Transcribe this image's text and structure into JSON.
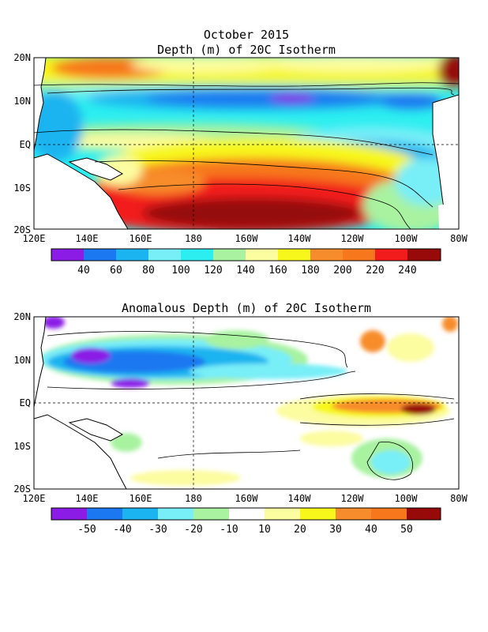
{
  "top_panel": {
    "title_line1": "October 2015",
    "title_line2": "Depth (m) of 20C Isotherm",
    "lat_labels": [
      "20N",
      "10N",
      "EQ",
      "10S",
      "20S"
    ],
    "lon_labels": [
      "120E",
      "140E",
      "160E",
      "180",
      "160W",
      "140W",
      "120W",
      "100W",
      "80W"
    ],
    "colorbar": {
      "colors": [
        "#8a1ce6",
        "#1c78f0",
        "#1cb4f0",
        "#78eef7",
        "#2ceef0",
        "#a8f2a0",
        "#fcfca0",
        "#f7f71c",
        "#f78c2c",
        "#f7781c",
        "#f21c1c",
        "#960a0a"
      ],
      "labels": [
        "40",
        "60",
        "80",
        "100",
        "120",
        "140",
        "160",
        "180",
        "200",
        "220",
        "240"
      ]
    }
  },
  "bottom_panel": {
    "title": "Anomalous Depth (m) of 20C Isotherm",
    "lat_labels": [
      "20N",
      "10N",
      "EQ",
      "10S",
      "20S"
    ],
    "lon_labels": [
      "120E",
      "140E",
      "160E",
      "180",
      "160W",
      "140W",
      "120W",
      "100W",
      "80W"
    ],
    "colorbar": {
      "colors": [
        "#8a1ce6",
        "#1c78f0",
        "#1cb4f0",
        "#78eef7",
        "#a8f2a0",
        "#ffffff",
        "#fcfca0",
        "#f7f71c",
        "#f78c2c",
        "#f7781c",
        "#960a0a"
      ],
      "labels": [
        "-50",
        "-40",
        "-30",
        "-20",
        "-10",
        "10",
        "20",
        "30",
        "40",
        "50"
      ]
    }
  }
}
